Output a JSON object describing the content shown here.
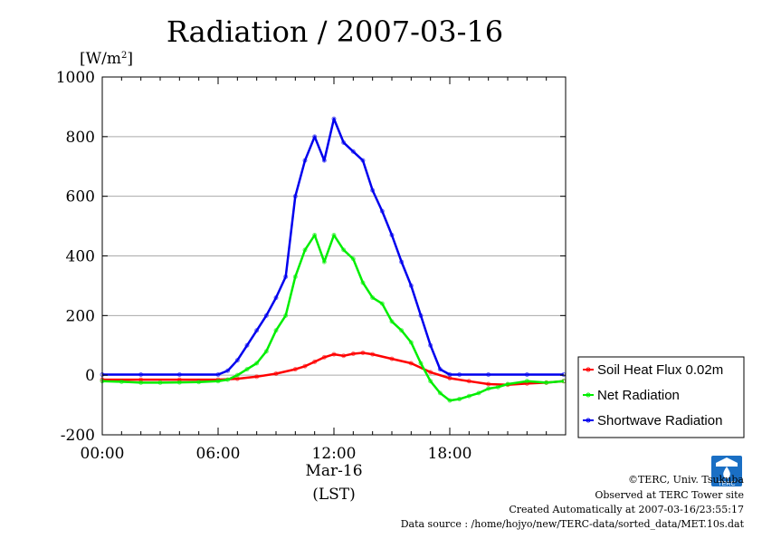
{
  "chart_data": {
    "type": "line",
    "title": "Radiation / 2007-03-16",
    "ylabel_base": "[W/m",
    "ylabel_sup": "2",
    "ylabel_close": "]",
    "ylim": [
      -200,
      1000
    ],
    "yticks": [
      -200,
      0,
      200,
      400,
      600,
      800,
      1000
    ],
    "yticklabels": [
      "-200",
      "0",
      "200",
      "400",
      "600",
      "800",
      "1000"
    ],
    "xlim": [
      0,
      24
    ],
    "xticks": [
      0,
      6,
      12,
      18
    ],
    "xticklabels": [
      "00:00",
      "06:00",
      "12:00",
      "18:00"
    ],
    "xlabel_date": "Mar-16",
    "xlabel_tz": "(LST)",
    "grid": "horizontal",
    "legend_position": "right",
    "series": [
      {
        "name": "Soil Heat Flux 0.02m",
        "color": "#ff0000",
        "x": [
          0,
          2,
          4,
          6,
          7,
          8,
          9,
          10,
          10.5,
          11,
          11.5,
          12,
          12.5,
          13,
          13.5,
          14,
          15,
          16,
          17,
          18,
          19,
          20,
          21,
          22,
          23,
          23.9
        ],
        "y": [
          -15,
          -15,
          -15,
          -15,
          -12,
          -5,
          5,
          20,
          30,
          45,
          60,
          70,
          65,
          72,
          75,
          70,
          55,
          40,
          10,
          -10,
          -20,
          -30,
          -32,
          -28,
          -25,
          -20
        ]
      },
      {
        "name": "Net Radiation",
        "color": "#00ee00",
        "x": [
          0,
          1,
          2,
          3,
          4,
          5,
          6,
          6.5,
          7,
          7.5,
          8,
          8.5,
          9,
          9.5,
          10,
          10.5,
          11,
          11.5,
          12,
          12.5,
          13,
          13.5,
          14,
          14.5,
          15,
          15.5,
          16,
          16.5,
          17,
          17.5,
          18,
          18.5,
          19,
          19.5,
          20,
          20.5,
          21,
          22,
          23,
          23.9
        ],
        "y": [
          -20,
          -22,
          -25,
          -25,
          -24,
          -23,
          -20,
          -15,
          0,
          20,
          40,
          80,
          150,
          200,
          330,
          420,
          470,
          380,
          470,
          420,
          390,
          310,
          260,
          240,
          180,
          150,
          110,
          40,
          -20,
          -60,
          -85,
          -80,
          -70,
          -60,
          -45,
          -40,
          -30,
          -20,
          -25,
          -20
        ]
      },
      {
        "name": "Shortwave Radiation",
        "color": "#0000ee",
        "x": [
          0,
          2,
          4,
          6,
          6.5,
          7,
          7.5,
          8,
          8.5,
          9,
          9.5,
          10,
          10.5,
          11,
          11.5,
          12,
          12.5,
          13,
          13.5,
          14,
          14.5,
          15,
          15.5,
          16,
          16.5,
          17,
          17.5,
          18,
          18.5,
          20,
          22,
          23.9
        ],
        "y": [
          2,
          2,
          2,
          2,
          15,
          50,
          100,
          150,
          200,
          260,
          330,
          600,
          720,
          800,
          720,
          860,
          780,
          750,
          720,
          620,
          550,
          470,
          380,
          300,
          200,
          100,
          20,
          2,
          2,
          2,
          2,
          2
        ]
      }
    ]
  },
  "footer": {
    "copyright": "©TERC, Univ. Tsukuba",
    "site": "Observed at TERC Tower site",
    "created": "Created Automatically at 2007-03-16/23:55:17",
    "source": "Data source : /home/hojyo/new/TERC-data/sorted_data/MET.10s.dat"
  },
  "logo": {
    "text": "TERC"
  }
}
